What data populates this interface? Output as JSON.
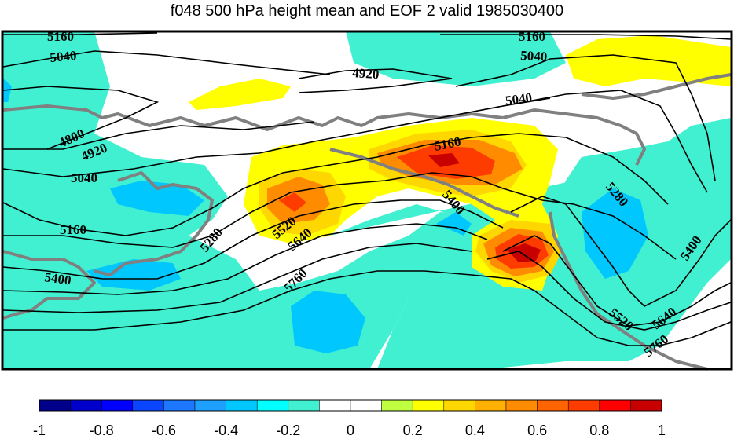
{
  "title": "f048 500 hPa height mean and EOF 2 valid 1985030400",
  "contour_labels": [
    "5160",
    "5040",
    "4920",
    "4800",
    "4920",
    "5040",
    "5160",
    "5400",
    "5160",
    "5040",
    "5040",
    "5160",
    "5400",
    "5520",
    "5640",
    "5760",
    "5280",
    "5280",
    "5400",
    "5520",
    "5640",
    "5760"
  ],
  "colorbar": {
    "colors": [
      "#00008b",
      "#0000cd",
      "#0000ff",
      "#0a46ff",
      "#1e78ff",
      "#1ea0ff",
      "#00c8ff",
      "#00ffff",
      "#40f0d0",
      "#ffffff",
      "#ffffff",
      "#c0ff40",
      "#ffff00",
      "#ffd700",
      "#ffb000",
      "#ff8c00",
      "#ff6400",
      "#ff3c00",
      "#ff0000",
      "#c80000"
    ],
    "tick_labels": [
      "-1",
      "-0.8",
      "-0.6",
      "-0.4",
      "-0.2",
      "0",
      "0.2",
      "0.4",
      "0.6",
      "0.8",
      "1"
    ]
  },
  "colors": {
    "cyan_fill": "#40f0d0",
    "blue_fill": "#00c8ff",
    "yellow_fill": "#ffff00",
    "gold_fill": "#ffd700",
    "orange_fill": "#ff8c00",
    "redorange_fill": "#ff3c00",
    "red_fill": "#c80000",
    "coastline": "#808080",
    "contour": "#000000"
  }
}
